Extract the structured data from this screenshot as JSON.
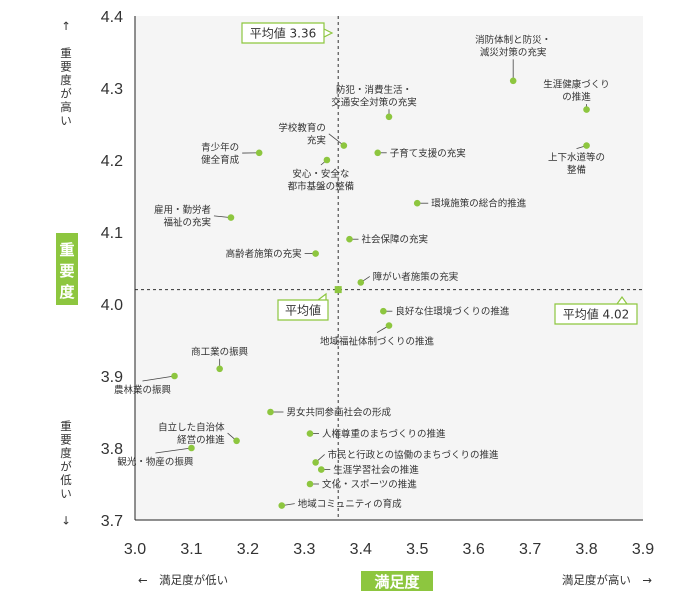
{
  "chart_data": {
    "type": "scatter",
    "xlim": [
      3.0,
      3.9
    ],
    "ylim": [
      3.7,
      4.4
    ],
    "x_ticks": [
      "3.0",
      "3.1",
      "3.2",
      "3.3",
      "3.4",
      "3.5",
      "3.6",
      "3.7",
      "3.8",
      "3.9"
    ],
    "y_ticks": [
      "3.7",
      "3.8",
      "3.9",
      "4.0",
      "4.1",
      "4.2",
      "4.3",
      "4.4"
    ],
    "xlabel": "満足度",
    "ylabel": "重要度",
    "x_low_label": "←　満足度が低い",
    "x_high_label": "満足度が高い　→",
    "y_high_label": "↑　重要度が高い",
    "y_low_label": "重要度が低い　↓",
    "avg_x": 3.36,
    "avg_y": 4.02,
    "avg_x_label": "平均値 3.36",
    "avg_y_label": "平均値 4.02",
    "avg_point_label": "平均値",
    "grid": false,
    "colors": {
      "point": "#8dc63f",
      "badge": "#8dc63f",
      "plot_bg": "#f5f5f5",
      "axis": "#222222"
    },
    "points": [
      {
        "lines": [
          "消防体制と防災・",
          "減災対策の充実"
        ],
        "x": 3.67,
        "y": 4.31
      },
      {
        "lines": [
          "生涯健康づくり",
          "の推進"
        ],
        "x": 3.8,
        "y": 4.27
      },
      {
        "lines": [
          "防犯・消費生活・",
          "交通安全対策の充実"
        ],
        "x": 3.45,
        "y": 4.26
      },
      {
        "lines": [
          "学校教育の",
          "充実"
        ],
        "x": 3.37,
        "y": 4.22
      },
      {
        "lines": [
          "上下水道等の",
          "整備"
        ],
        "x": 3.8,
        "y": 4.22
      },
      {
        "lines": [
          "青少年の",
          "健全育成"
        ],
        "x": 3.22,
        "y": 4.21
      },
      {
        "lines": [
          "子育て支援の充実"
        ],
        "x": 3.43,
        "y": 4.21
      },
      {
        "lines": [
          "安心・安全な",
          "都市基盤の整備"
        ],
        "x": 3.34,
        "y": 4.2
      },
      {
        "lines": [
          "環境施策の総合的推進"
        ],
        "x": 3.5,
        "y": 4.14
      },
      {
        "lines": [
          "雇用・勤労者",
          "福祉の充実"
        ],
        "x": 3.17,
        "y": 4.12
      },
      {
        "lines": [
          "社会保障の充実"
        ],
        "x": 3.38,
        "y": 4.09
      },
      {
        "lines": [
          "高齢者施策の充実"
        ],
        "x": 3.32,
        "y": 4.07
      },
      {
        "lines": [
          "障がい者施策の充実"
        ],
        "x": 3.4,
        "y": 4.03
      },
      {
        "lines": [
          "良好な住環境づくりの推進"
        ],
        "x": 3.44,
        "y": 3.99
      },
      {
        "lines": [
          "地域福祉体制づくりの推進"
        ],
        "x": 3.45,
        "y": 3.97
      },
      {
        "lines": [
          "商工業の振興"
        ],
        "x": 3.15,
        "y": 3.91
      },
      {
        "lines": [
          "農林業の振興"
        ],
        "x": 3.07,
        "y": 3.9
      },
      {
        "lines": [
          "男女共同参画社会の形成"
        ],
        "x": 3.24,
        "y": 3.85
      },
      {
        "lines": [
          "自立した自治体",
          "経営の推進"
        ],
        "x": 3.18,
        "y": 3.81
      },
      {
        "lines": [
          "人権尊重のまちづくりの推進"
        ],
        "x": 3.31,
        "y": 3.82
      },
      {
        "lines": [
          "観光・物産の振興"
        ],
        "x": 3.1,
        "y": 3.8
      },
      {
        "lines": [
          "市民と行政との協働のまちづくりの推進"
        ],
        "x": 3.32,
        "y": 3.78
      },
      {
        "lines": [
          "生涯学習社会の推進"
        ],
        "x": 3.33,
        "y": 3.77
      },
      {
        "lines": [
          "文化・スポーツの推進"
        ],
        "x": 3.31,
        "y": 3.75
      },
      {
        "lines": [
          "地域コミュニティの育成"
        ],
        "x": 3.26,
        "y": 3.72
      }
    ]
  }
}
